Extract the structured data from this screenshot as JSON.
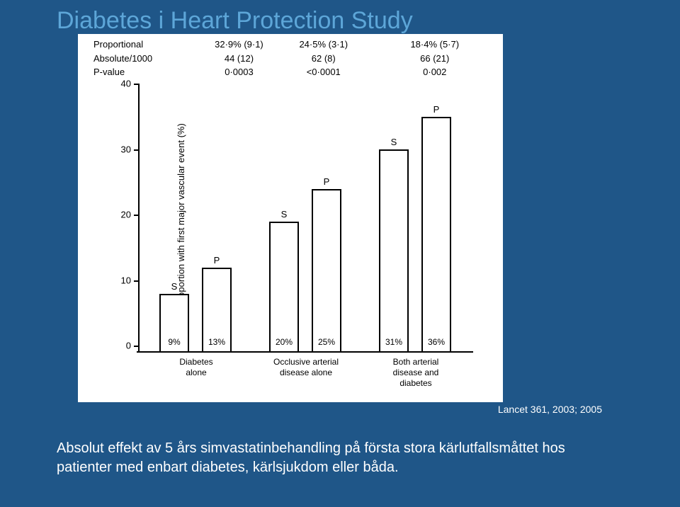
{
  "title": "Diabetes i Heart Protection Study",
  "citation": "Lancet 361, 2003; 2005",
  "caption_line1": "Absolut effekt av  5 års simvastatinbehandling på första stora kärlutfallsmåttet hos",
  "caption_line2": "patienter med enbart diabetes, kärlsjukdom eller båda.",
  "chart": {
    "type": "bar",
    "background_color": "#ffffff",
    "bar_border_color": "#000000",
    "bar_fill_color": "#ffffff",
    "axis_color": "#000000",
    "text_color": "#000000",
    "font_size": 13,
    "y_label": "Proportion with first major vascular event (%)",
    "ylim": [
      0,
      40
    ],
    "y_ticks": [
      0,
      10,
      20,
      30,
      40
    ],
    "stat_rows": [
      {
        "label": "Proportional",
        "values": [
          "32·9% (9·1)",
          "24·5% (3·1)",
          "18·4% (5·7)"
        ]
      },
      {
        "label": "Absolute/1000",
        "values": [
          "44 (12)",
          "62 (8)",
          "66 (21)"
        ]
      },
      {
        "label": "P-value",
        "values": [
          "0·0003",
          "<0·0001",
          "0·002"
        ]
      }
    ],
    "groups": [
      {
        "category_line1": "Diabetes",
        "category_line2": "alone",
        "bars": [
          {
            "series": "S",
            "value": 9,
            "inside_label": "9%"
          },
          {
            "series": "P",
            "value": 13,
            "inside_label": "13%"
          }
        ]
      },
      {
        "category_line1": "Occlusive arterial",
        "category_line2": "disease alone",
        "bars": [
          {
            "series": "S",
            "value": 20,
            "inside_label": "20%"
          },
          {
            "series": "P",
            "value": 25,
            "inside_label": "25%"
          }
        ]
      },
      {
        "category_line1": "Both arterial",
        "category_line2": "disease and",
        "category_line3": "diabetes",
        "bars": [
          {
            "series": "S",
            "value": 31,
            "inside_label": "31%"
          },
          {
            "series": "P",
            "value": 36,
            "inside_label": "36%"
          }
        ]
      }
    ]
  },
  "colors": {
    "slide_bg": "#1f5688",
    "title_color": "#5da6d8",
    "body_text": "#ffffff"
  }
}
